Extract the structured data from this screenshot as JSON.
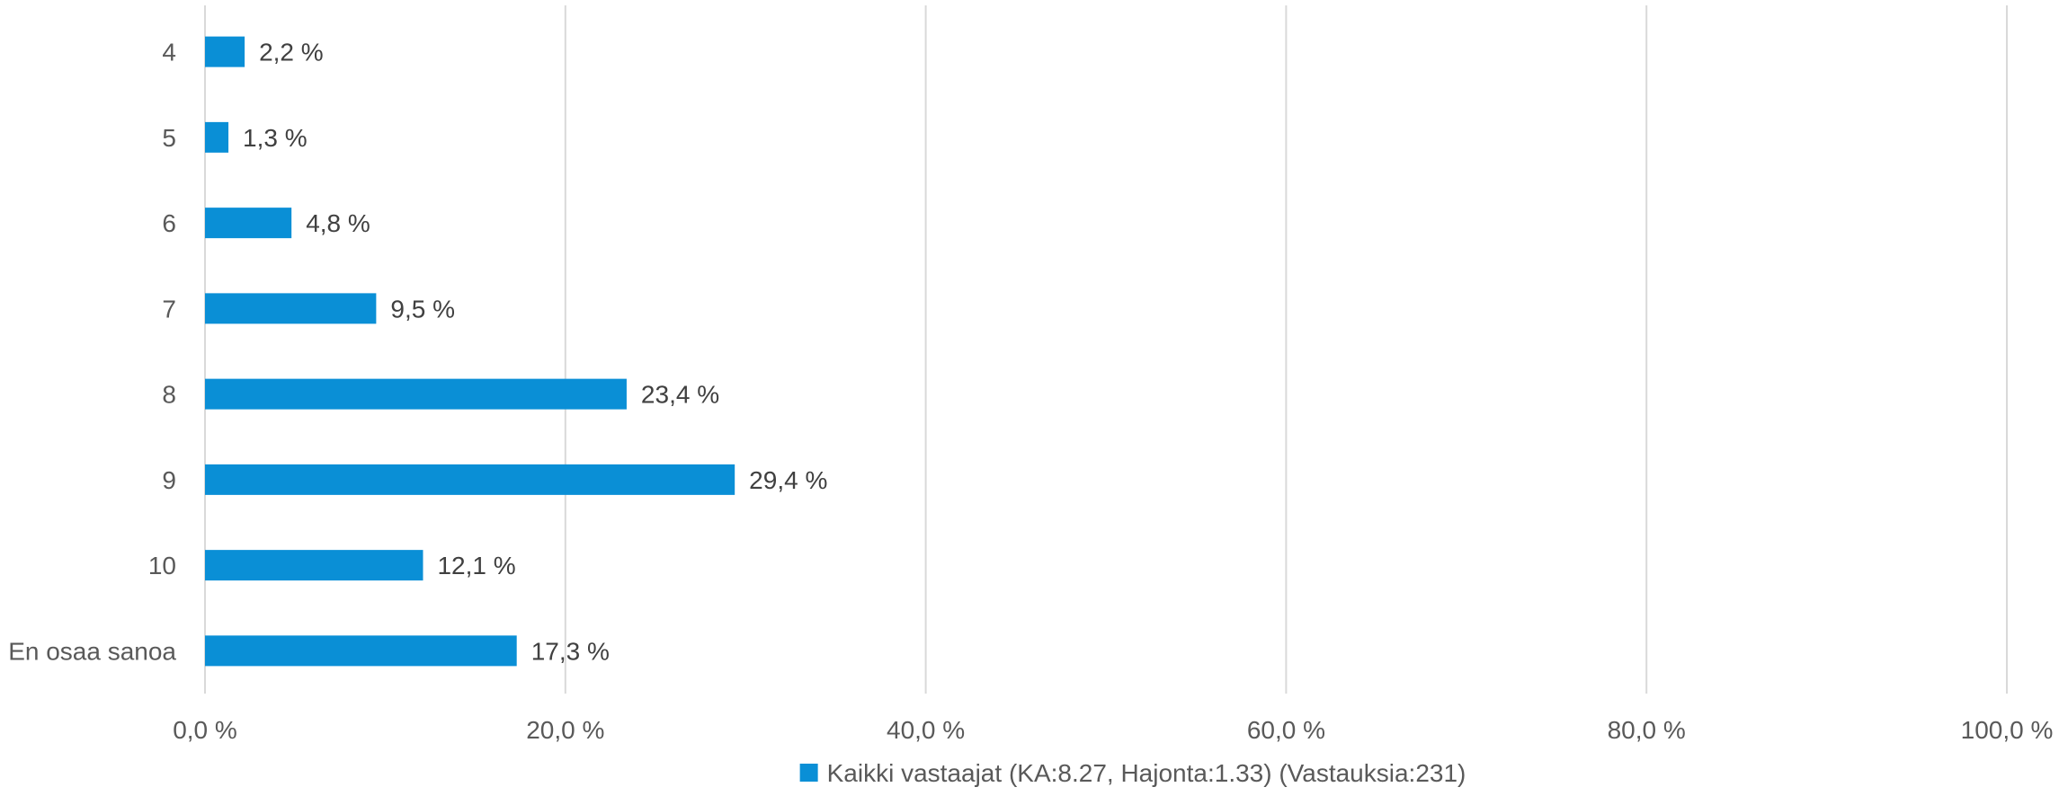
{
  "chart_data": {
    "type": "bar",
    "orientation": "horizontal",
    "categories": [
      "4",
      "5",
      "6",
      "7",
      "8",
      "9",
      "10",
      "En osaa sanoa"
    ],
    "series": [
      {
        "name": "Kaikki vastaajat (KA:8.27, Hajonta:1.33) (Vastauksia:231)",
        "values": [
          2.2,
          1.3,
          4.8,
          9.5,
          23.4,
          29.4,
          12.1,
          17.3
        ],
        "labels": [
          "2,2 %",
          "1,3 %",
          "4,8 %",
          "9,5 %",
          "23,4 %",
          "29,4 %",
          "12,1 %",
          "17,3 %"
        ],
        "color": "#0a8fd6"
      }
    ],
    "xlim": [
      0,
      100
    ],
    "ticks": [
      0,
      20,
      40,
      60,
      80,
      100
    ],
    "tick_labels": [
      "0,0 %",
      "20,0 %",
      "40,0 %",
      "60,0 %",
      "80,0 %",
      "100,0 %"
    ],
    "grid": true,
    "legend_position": "bottom",
    "title": "",
    "xlabel": "",
    "ylabel": ""
  },
  "colors": {
    "grid": "#d9d9d9",
    "text": "#595959"
  }
}
